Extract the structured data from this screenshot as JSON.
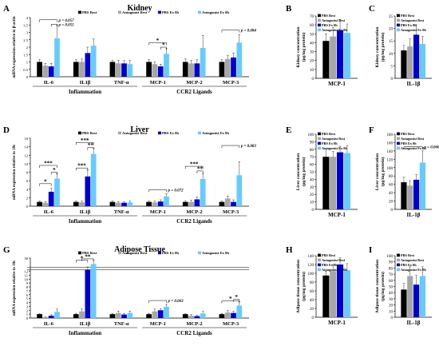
{
  "series_names": [
    "PBS Rest",
    "Antagonist Rest",
    "PBS Ex 0h",
    "Antagonist Ex 0h"
  ],
  "colors": {
    "pbs_rest": "#000000",
    "antagonist_rest": "#a6a6a6",
    "pbs_ex": "#0000cc",
    "antagonist_ex": "#66ccff",
    "axis": "#000000",
    "text": "#000000"
  },
  "chart_data": [
    {
      "id": "A",
      "type": "bar",
      "title": "Kidney",
      "ylabel": "mRNA expression relative to β-actin",
      "ylim": [
        0,
        4
      ],
      "yticks": [
        0,
        0.5,
        1,
        1.5,
        2,
        2.5,
        3,
        3.5,
        4
      ],
      "categories": [
        "IL-6",
        "IL1β",
        "TNF-α",
        "MCP-1",
        "MCP-2",
        "MCP-3"
      ],
      "groups": [
        {
          "label": "Inflammation",
          "from": 0,
          "to": 2
        },
        {
          "label": "CCR2 Ligands",
          "from": 3,
          "to": 5
        }
      ],
      "series": [
        {
          "name": "PBS Rest",
          "values": [
            1.0,
            1.0,
            1.0,
            1.0,
            1.0,
            1.0
          ],
          "errors": [
            0.15,
            0.15,
            0.1,
            0.15,
            0.2,
            0.15
          ]
        },
        {
          "name": "Antagonist Rest",
          "values": [
            0.75,
            1.0,
            0.9,
            0.85,
            0.9,
            1.2
          ],
          "errors": [
            0.15,
            0.2,
            0.2,
            0.15,
            0.2,
            0.25
          ]
        },
        {
          "name": "PBS Ex 0h",
          "values": [
            0.7,
            1.6,
            0.9,
            0.7,
            0.9,
            1.3
          ],
          "errors": [
            0.2,
            0.4,
            0.2,
            0.15,
            0.25,
            0.3
          ]
        },
        {
          "name": "Antagonist Ex 0h",
          "values": [
            2.6,
            2.1,
            0.85,
            1.55,
            1.95,
            2.3
          ],
          "errors": [
            0.9,
            0.45,
            0.25,
            0.35,
            0.85,
            0.55
          ]
        }
      ],
      "annotations": [
        {
          "text": "p = 0.057",
          "cat": 0,
          "from_series": 0,
          "to_series": 3,
          "y": 3.85
        },
        {
          "text": "p = 0.055",
          "cat": 0,
          "from_series": 2,
          "to_series": 3,
          "y": 3.55
        },
        {
          "text": "*",
          "cat": 3,
          "from_series": 0,
          "to_series": 3,
          "y": 2.3
        },
        {
          "text": "*",
          "cat": 3,
          "from_series": 2,
          "to_series": 3,
          "y": 2.0
        },
        {
          "text": "p = 0.084",
          "cat": 5,
          "from_series": 0,
          "to_series": 3,
          "y": 3.15
        }
      ]
    },
    {
      "id": "B",
      "type": "bar",
      "title": "",
      "ylabel": "Kidney concentration (pg/mg protein)",
      "ylim": [
        0,
        70
      ],
      "yticks": [
        0,
        10,
        20,
        30,
        40,
        50,
        60,
        70
      ],
      "categories": [
        "MCP-1"
      ],
      "series": [
        {
          "name": "PBS Rest",
          "values": [
            42
          ],
          "errors": [
            8
          ]
        },
        {
          "name": "Antagonist Rest",
          "values": [
            47
          ],
          "errors": [
            10
          ]
        },
        {
          "name": "PBS Ex 0h",
          "values": [
            54
          ],
          "errors": [
            12
          ]
        },
        {
          "name": "Antagonist Ex 0h",
          "values": [
            51
          ],
          "errors": [
            10
          ]
        }
      ],
      "annotations": []
    },
    {
      "id": "C",
      "type": "bar",
      "title": "",
      "ylabel": "Kidney concentration (pg/mg protein)",
      "ylim": [
        0,
        25
      ],
      "yticks": [
        0,
        5,
        10,
        15,
        20,
        25
      ],
      "categories": [
        "IL-1β"
      ],
      "series": [
        {
          "name": "PBS Rest",
          "values": [
            11.2
          ],
          "errors": [
            2
          ]
        },
        {
          "name": "Antagonist Rest",
          "values": [
            12.8
          ],
          "errors": [
            3
          ]
        },
        {
          "name": "PBS Ex 0h",
          "values": [
            17.5
          ],
          "errors": [
            4
          ]
        },
        {
          "name": "Antagonist Ex 0h",
          "values": [
            13.8
          ],
          "errors": [
            3
          ]
        }
      ],
      "annotations": []
    },
    {
      "id": "D",
      "type": "bar",
      "title": "Liver",
      "ylabel": "mRNA expression relative to 18s",
      "ylim": [
        0,
        16
      ],
      "yticks": [
        0,
        2,
        4,
        6,
        8,
        10,
        12,
        14,
        16
      ],
      "categories": [
        "IL-6",
        "IL1β",
        "TNF-α",
        "MCP-1",
        "MCP-2",
        "MCP-3"
      ],
      "groups": [
        {
          "label": "Inflammation",
          "from": 0,
          "to": 2
        },
        {
          "label": "CCR2 Ligands",
          "from": 3,
          "to": 5
        }
      ],
      "series": [
        {
          "name": "PBS Rest",
          "values": [
            1.0,
            1.0,
            1.0,
            1.0,
            1.0,
            1.0
          ],
          "errors": [
            0.2,
            0.2,
            0.2,
            0.2,
            0.2,
            0.2
          ]
        },
        {
          "name": "Antagonist Rest",
          "values": [
            0.8,
            0.9,
            0.8,
            0.9,
            1.0,
            1.8
          ],
          "errors": [
            0.3,
            0.3,
            0.3,
            0.3,
            0.4,
            0.6
          ]
        },
        {
          "name": "PBS Ex 0h",
          "values": [
            3.4,
            7.0,
            0.8,
            1.1,
            1.6,
            1.0
          ],
          "errors": [
            0.8,
            1.5,
            0.3,
            0.4,
            0.6,
            0.5
          ]
        },
        {
          "name": "Antagonist Ex 0h",
          "values": [
            6.5,
            12.3,
            0.9,
            2.3,
            6.4,
            7.3
          ],
          "errors": [
            1.2,
            1.4,
            0.3,
            0.6,
            1.3,
            3.2
          ]
        }
      ],
      "annotations": [
        {
          "text": "*",
          "cat": 0,
          "from_series": 0,
          "to_series": 2,
          "y": 5.3
        },
        {
          "text": "***",
          "cat": 0,
          "from_series": 0,
          "to_series": 3,
          "y": 9.6
        },
        {
          "text": "*",
          "cat": 0,
          "from_series": 2,
          "to_series": 3,
          "y": 8.0
        },
        {
          "text": "***",
          "cat": 1,
          "from_series": 0,
          "to_series": 2,
          "y": 9.0
        },
        {
          "text": "***",
          "cat": 1,
          "from_series": 0,
          "to_series": 3,
          "y": 15.0
        },
        {
          "text": "**",
          "cat": 1,
          "from_series": 2,
          "to_series": 3,
          "y": 13.8
        },
        {
          "text": "p = 0.072",
          "cat": 3,
          "from_series": 0,
          "to_series": 3,
          "y": 3.9
        },
        {
          "text": "***",
          "cat": 4,
          "from_series": 0,
          "to_series": 3,
          "y": 9.4
        },
        {
          "text": "**",
          "cat": 4,
          "from_series": 2,
          "to_series": 3,
          "y": 8.3
        },
        {
          "text": "p = 0.083",
          "cat": 5,
          "from_series": 0,
          "to_series": 3,
          "y": 14.3
        }
      ]
    },
    {
      "id": "E",
      "type": "bar",
      "title": "",
      "ylabel": "Liver concentration (pg/mg protein)",
      "ylim": [
        0,
        100
      ],
      "yticks": [
        0,
        10,
        20,
        30,
        40,
        50,
        60,
        70,
        80,
        90,
        100
      ],
      "categories": [
        "MCP-1"
      ],
      "series": [
        {
          "name": "PBS Rest",
          "values": [
            70
          ],
          "errors": [
            10
          ]
        },
        {
          "name": "Antagonist Rest",
          "values": [
            70
          ],
          "errors": [
            7
          ]
        },
        {
          "name": "PBS Ex 0h",
          "values": [
            76
          ],
          "errors": [
            8
          ]
        },
        {
          "name": "Antagonist Ex 0h",
          "values": [
            75
          ],
          "errors": [
            10
          ]
        }
      ],
      "annotations": []
    },
    {
      "id": "F",
      "type": "bar",
      "title": "",
      "ylabel": "Liver concentration (pg/mg protein)",
      "ylim": [
        0,
        180
      ],
      "yticks": [
        0,
        20,
        40,
        60,
        80,
        100,
        120,
        140,
        160,
        180
      ],
      "categories": [
        "IL-1β"
      ],
      "series": [
        {
          "name": "PBS Rest",
          "values": [
            65
          ],
          "errors": [
            12
          ]
        },
        {
          "name": "Antagonist Rest",
          "values": [
            57
          ],
          "errors": [
            12
          ]
        },
        {
          "name": "PBS Ex 0h",
          "values": [
            71
          ],
          "errors": [
            12
          ]
        },
        {
          "name": "Antagonist Ex 0h",
          "values": [
            112
          ],
          "errors": [
            28
          ]
        }
      ],
      "annotations": [
        {
          "text": "p = 0.060",
          "cat": 0,
          "from_series": 0,
          "to_series": 3,
          "y": 150
        }
      ]
    },
    {
      "id": "G",
      "type": "bar",
      "title": "Adipose Tissue",
      "ylabel": "mRNA expression relative to 18s",
      "ylim": [
        0,
        30
      ],
      "yticks": [
        0,
        1,
        2,
        3,
        4,
        5,
        6,
        7,
        8,
        9,
        10,
        11,
        12,
        30
      ],
      "categories": [
        "IL-6",
        "IL1β",
        "TNF-α",
        "MCP-1",
        "MCP-2",
        "MCP-3"
      ],
      "groups": [
        {
          "label": "Inflammation",
          "from": 0,
          "to": 2
        },
        {
          "label": "CCR2 Ligands",
          "from": 3,
          "to": 5
        }
      ],
      "series": [
        {
          "name": "PBS Rest",
          "values": [
            1.0,
            1.0,
            1.0,
            1.0,
            1.0,
            1.0
          ],
          "errors": [
            0.1,
            0.2,
            0.2,
            0.2,
            0.1,
            0.2
          ]
        },
        {
          "name": "Antagonist Rest",
          "values": [
            0.2,
            1.7,
            1.3,
            1.7,
            0.6,
            1.4
          ],
          "errors": [
            0.1,
            0.6,
            0.5,
            0.6,
            0.3,
            0.5
          ]
        },
        {
          "name": "PBS Ex 0h",
          "values": [
            0.6,
            14.0,
            0.9,
            2.0,
            0.5,
            1.3
          ],
          "errors": [
            0.3,
            4.0,
            0.3,
            0.4,
            0.2,
            0.4
          ]
        },
        {
          "name": "Antagonist Ex 0h",
          "values": [
            1.6,
            22.0,
            1.3,
            2.9,
            1.2,
            3.2
          ],
          "errors": [
            0.7,
            5.0,
            0.5,
            0.6,
            0.5,
            1.0
          ]
        }
      ],
      "annotations": [
        {
          "text": "*",
          "cat": 1,
          "from_series": 0,
          "to_series": 2,
          "y": 27
        },
        {
          "text": "**",
          "cat": 1,
          "from_series": 1,
          "to_series": 3,
          "y": 29
        },
        {
          "text": "p = 0.063",
          "cat": 3,
          "from_series": 0,
          "to_series": 3,
          "y": 4.5
        },
        {
          "text": "*",
          "cat": 5,
          "from_series": 0,
          "to_series": 3,
          "y": 4.4
        },
        {
          "text": "*",
          "cat": 5,
          "from_series": 2,
          "to_series": 3,
          "y": 4.8
        }
      ]
    },
    {
      "id": "H",
      "type": "bar",
      "title": "",
      "ylabel": "Adipose tissue concentration (pg/mg protein)",
      "ylim": [
        0,
        140
      ],
      "yticks": [
        0,
        20,
        40,
        60,
        80,
        100,
        120,
        140
      ],
      "categories": [
        "MCP-1"
      ],
      "series": [
        {
          "name": "PBS Rest",
          "values": [
            95
          ],
          "errors": [
            10
          ]
        },
        {
          "name": "Antagonist Rest",
          "values": [
            105
          ],
          "errors": [
            15
          ]
        },
        {
          "name": "PBS Ex 0h",
          "values": [
            120
          ],
          "errors": [
            15
          ]
        },
        {
          "name": "Antagonist Ex 0h",
          "values": [
            107
          ],
          "errors": [
            15
          ]
        }
      ],
      "annotations": []
    },
    {
      "id": "I",
      "type": "bar",
      "title": "",
      "ylabel": "Adipose tissue concentration (pg/mg protein)",
      "ylim": [
        0,
        100
      ],
      "yticks": [
        0,
        10,
        20,
        30,
        40,
        50,
        60,
        70,
        80,
        90,
        100
      ],
      "categories": [
        "IL-1β"
      ],
      "series": [
        {
          "name": "PBS Rest",
          "values": [
            45
          ],
          "errors": [
            10
          ]
        },
        {
          "name": "Antagonist Rest",
          "values": [
            67
          ],
          "errors": [
            15
          ]
        },
        {
          "name": "PBS Ex 0h",
          "values": [
            53
          ],
          "errors": [
            15
          ]
        },
        {
          "name": "Antagonist Ex 0h",
          "values": [
            67
          ],
          "errors": [
            15
          ]
        }
      ],
      "annotations": []
    }
  ]
}
